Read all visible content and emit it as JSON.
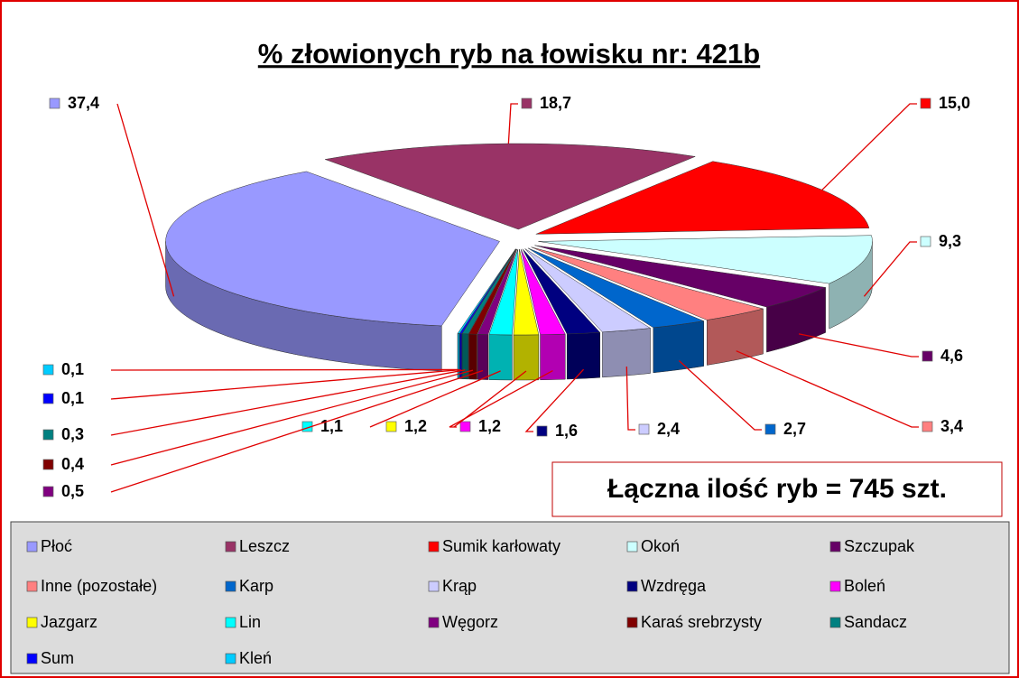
{
  "chart_data": {
    "type": "pie",
    "title": "% złowionych ryb na łowisku nr: 421b",
    "annotation": "Łączna ilość ryb = 745 szt.",
    "legend": "bottom",
    "categories": [
      "Płoć",
      "Leszcz",
      "Sumik karłowaty",
      "Okoń",
      "Szczupak",
      "Inne (pozostałe)",
      "Karp",
      "Krąp",
      "Wzdręga",
      "Boleń",
      "Jazgarz",
      "Lin",
      "Węgorz",
      "Karaś srebrzysty",
      "Sandacz",
      "Sum",
      "Kleń"
    ],
    "values": [
      37.4,
      18.7,
      15.0,
      9.3,
      4.6,
      3.4,
      2.7,
      2.4,
      1.6,
      1.2,
      1.2,
      1.1,
      0.5,
      0.4,
      0.3,
      0.1,
      0.1
    ],
    "value_labels": [
      "37,4",
      "18,7",
      "15,0",
      "9,3",
      "4,6",
      "3,4",
      "2,7",
      "2,4",
      "1,6",
      "1,2",
      "1,2",
      "1,1",
      "0,5",
      "0,4",
      "0,3",
      "0,1",
      "0,1"
    ],
    "colors": [
      "#9999ff",
      "#993366",
      "#ff0000",
      "#ccffff",
      "#660066",
      "#ff8080",
      "#0066cc",
      "#ccccff",
      "#000080",
      "#ff00ff",
      "#ffff00",
      "#00ffff",
      "#800080",
      "#800000",
      "#008080",
      "#0000ff",
      "#00ccff"
    ]
  }
}
